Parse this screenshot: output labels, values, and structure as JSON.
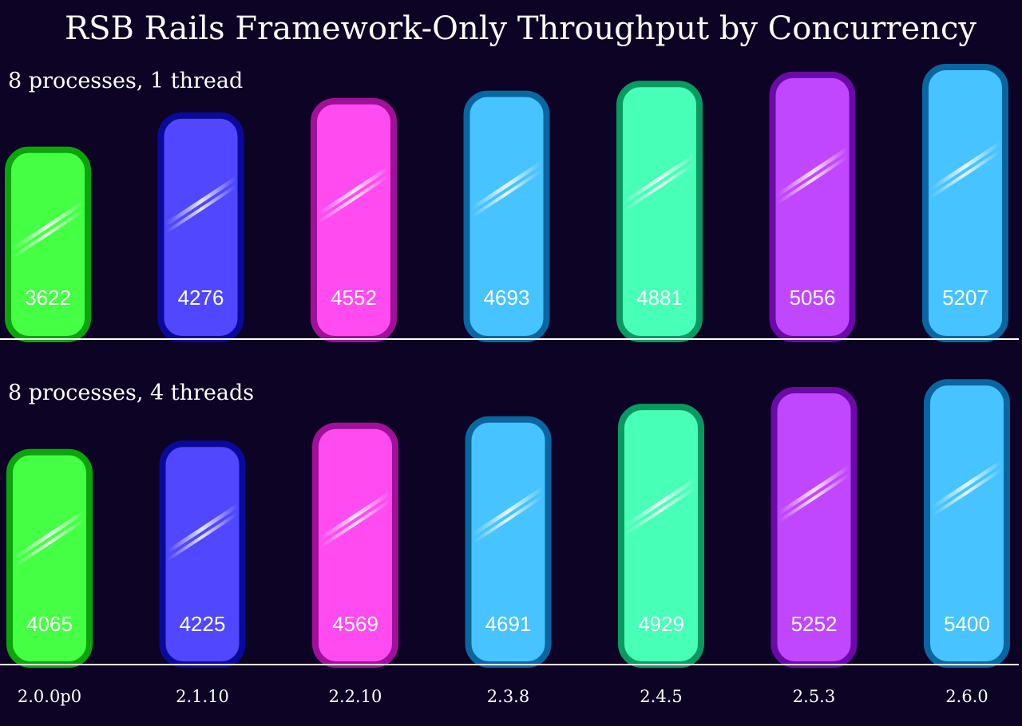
{
  "chart_data": {
    "type": "bar",
    "title": "RSB Rails Framework-Only Throughput by Concurrency",
    "categories": [
      "2.0.0p0",
      "2.1.10",
      "2.2.10",
      "2.3.8",
      "2.4.5",
      "2.5.3",
      "2.6.0"
    ],
    "colors": [
      {
        "fill": "#45ff45",
        "stroke": "#0ba50b"
      },
      {
        "fill": "#5047ff",
        "stroke": "#0a0a9a"
      },
      {
        "fill": "#ff4bef",
        "stroke": "#a0109a"
      },
      {
        "fill": "#47c3ff",
        "stroke": "#0a66a0"
      },
      {
        "fill": "#48ffb8",
        "stroke": "#0a9a60"
      },
      {
        "fill": "#c147ff",
        "stroke": "#6a0aa8"
      },
      {
        "fill": "#47c3ff",
        "stroke": "#0a66a0"
      }
    ],
    "panels": [
      {
        "label": "8 processes, 1 thread",
        "values": [
          3622,
          4276,
          4552,
          4693,
          4881,
          5056,
          5207
        ]
      },
      {
        "label": "8 processes, 4 threads",
        "values": [
          4065,
          4225,
          4569,
          4691,
          4929,
          5252,
          5400
        ]
      }
    ]
  }
}
